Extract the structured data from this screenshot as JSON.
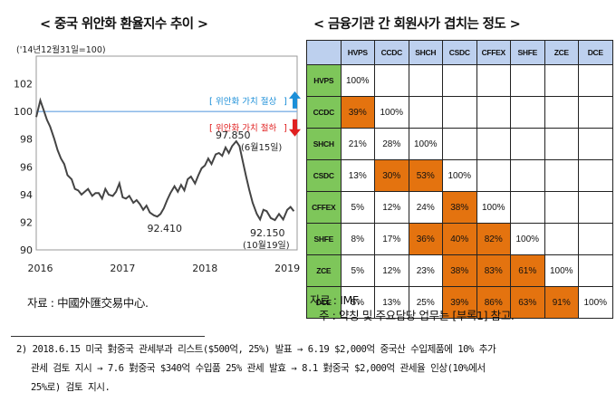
{
  "left_title": "< 중국 위안화 환율지수 추이 >",
  "right_title": "< 금융기관 간 회원사가 겹치는 정도 >",
  "left_source": "자료 : 中國外匯交易中心.",
  "right_source_line1": "자료 : IMF.",
  "right_source_line2": "주 : 약칭 및 주요담당 업무는 [부록1] 참고.",
  "footnote_lines": [
    "2) 2018.6.15 미국 對중국 관세부과 리스트($500억, 25%) 발표 → 6.19 $2,000억 중국산 수입제품에 10% 추가",
    "관세 검토 지시 → 7.6 對중국 $340억 수입품 25% 관세 발효 → 8.1 對중국 $2,000억 관세율 인상(10%에서",
    "25%로) 검토 지시."
  ],
  "colors": {
    "line": "#444444",
    "reference": "#7fb0e6",
    "up_arrow": "#1c8fd8",
    "down_arrow": "#e02020",
    "label_red": "#e02020",
    "label_blue": "#1c8fd8",
    "header_blue": "#bdd0ee",
    "header_green": "#7ec65a",
    "high_orange": "#e4730f"
  },
  "chart_data": [
    {
      "type": "line",
      "title": "중국 위안화 환율지수 추이",
      "base_note": "('14년12월31일=100)",
      "x_ticks": [
        "2016",
        "2017",
        "2018",
        "2019"
      ],
      "ylim": [
        90,
        104
      ],
      "y_ticks": [
        90,
        92,
        94,
        96,
        98,
        100,
        102
      ],
      "reference_value": 100,
      "annotations": {
        "up": "위안화 가치 절상",
        "down": "위안화 가치 절하",
        "peak": {
          "value": "97.850",
          "date": "(6월15일)"
        },
        "trough": {
          "value": "92.150",
          "date": "(10월19일)"
        },
        "low_2017": {
          "value": "92.410"
        }
      },
      "series": [
        {
          "x": [
            2015.95,
            2016.0,
            2016.04,
            2016.08,
            2016.12,
            2016.17,
            2016.21,
            2016.25,
            2016.29,
            2016.33,
            2016.38,
            2016.42,
            2016.46,
            2016.5,
            2016.54,
            2016.58,
            2016.63,
            2016.67,
            2016.71,
            2016.75,
            2016.79,
            2016.83,
            2016.88,
            2016.92,
            2016.96,
            2017.0,
            2017.04,
            2017.08,
            2017.13,
            2017.17,
            2017.21,
            2017.25,
            2017.29,
            2017.33,
            2017.38,
            2017.42,
            2017.46,
            2017.5,
            2017.54,
            2017.58,
            2017.63,
            2017.67,
            2017.71,
            2017.75,
            2017.79,
            2017.83,
            2017.88,
            2017.92,
            2017.96,
            2018.0,
            2018.04,
            2018.08,
            2018.13,
            2018.17,
            2018.21,
            2018.25,
            2018.29,
            2018.33,
            2018.38,
            2018.42,
            2018.46,
            2018.5,
            2018.54,
            2018.58,
            2018.63,
            2018.67,
            2018.71,
            2018.75,
            2018.8,
            2018.85,
            2018.9,
            2018.95,
            2019.0,
            2019.04,
            2019.08
          ],
          "y": [
            99.6,
            100.8,
            100.1,
            99.4,
            98.9,
            98.0,
            97.2,
            96.6,
            96.2,
            95.4,
            95.1,
            94.4,
            94.3,
            94.0,
            94.2,
            94.4,
            93.9,
            94.1,
            94.1,
            93.7,
            94.4,
            94.0,
            93.9,
            94.2,
            94.8,
            93.8,
            93.7,
            93.9,
            93.4,
            93.6,
            93.3,
            92.9,
            93.2,
            92.7,
            92.5,
            92.41,
            92.6,
            93.0,
            93.6,
            94.1,
            94.6,
            94.2,
            94.7,
            94.3,
            95.1,
            95.3,
            94.8,
            95.4,
            95.9,
            96.1,
            96.6,
            96.2,
            96.9,
            97.0,
            96.8,
            97.4,
            97.0,
            97.5,
            97.85,
            97.5,
            96.4,
            95.3,
            94.3,
            93.4,
            92.6,
            92.2,
            92.9,
            92.8,
            92.3,
            92.15,
            92.6,
            92.2,
            92.9,
            93.1,
            92.8
          ]
        }
      ]
    },
    {
      "type": "table",
      "title": "금융기관 간 회원사가 겹치는 정도",
      "columns": [
        "HVPS",
        "CCDC",
        "SHCH",
        "CSDC",
        "CFFEX",
        "SHFE",
        "ZCE",
        "DCE"
      ],
      "rows": [
        {
          "label": "HVPS",
          "values": [
            "100%",
            "",
            "",
            "",
            "",
            "",
            "",
            ""
          ]
        },
        {
          "label": "CCDC",
          "values": [
            "39%",
            "100%",
            "",
            "",
            "",
            "",
            "",
            ""
          ]
        },
        {
          "label": "SHCH",
          "values": [
            "21%",
            "28%",
            "100%",
            "",
            "",
            "",
            "",
            ""
          ]
        },
        {
          "label": "CSDC",
          "values": [
            "13%",
            "30%",
            "53%",
            "100%",
            "",
            "",
            "",
            ""
          ]
        },
        {
          "label": "CFFEX",
          "values": [
            "5%",
            "12%",
            "24%",
            "38%",
            "100%",
            "",
            "",
            ""
          ]
        },
        {
          "label": "SHFE",
          "values": [
            "8%",
            "17%",
            "36%",
            "40%",
            "82%",
            "100%",
            "",
            ""
          ]
        },
        {
          "label": "ZCE",
          "values": [
            "5%",
            "12%",
            "23%",
            "38%",
            "83%",
            "61%",
            "100%",
            ""
          ]
        },
        {
          "label": "DCE",
          "values": [
            "5%",
            "13%",
            "25%",
            "39%",
            "86%",
            "63%",
            "91%",
            "100%"
          ]
        }
      ],
      "highlighted": [
        [
          1,
          0
        ],
        [
          3,
          1
        ],
        [
          3,
          2
        ],
        [
          4,
          3
        ],
        [
          5,
          2
        ],
        [
          5,
          3
        ],
        [
          5,
          4
        ],
        [
          6,
          3
        ],
        [
          6,
          4
        ],
        [
          6,
          5
        ],
        [
          7,
          3
        ],
        [
          7,
          4
        ],
        [
          7,
          5
        ],
        [
          7,
          6
        ]
      ]
    }
  ]
}
